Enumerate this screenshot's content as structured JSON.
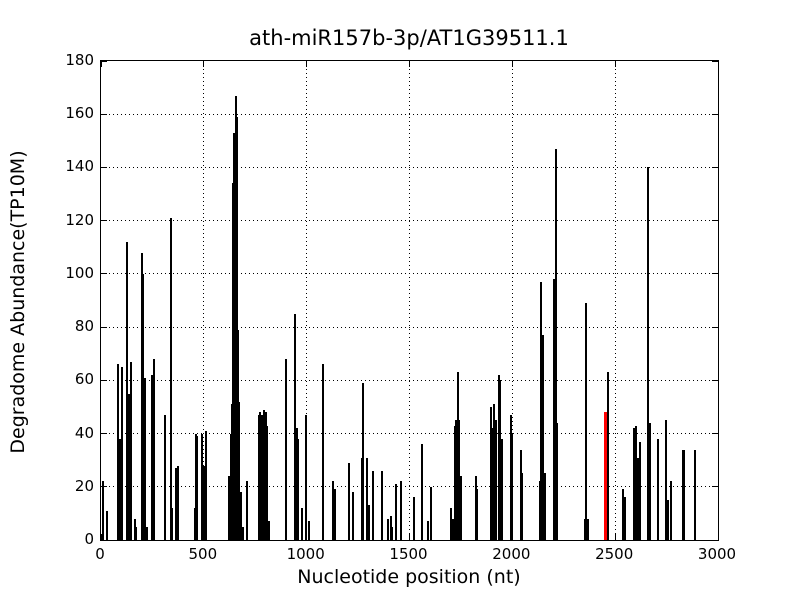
{
  "figure": {
    "title": "ath-miR157b-3p/AT1G39511.1",
    "xlabel": "Nucleotide position (nt)",
    "ylabel": "Degradome Abundance(TP10M)",
    "background_color": "#ffffff",
    "axis_color": "#000000"
  },
  "chart_data": {
    "type": "bar",
    "title": "ath-miR157b-3p/AT1G39511.1",
    "xlabel": "Nucleotide position (nt)",
    "ylabel": "Degradome Abundance(TP10M)",
    "xlim": [
      0,
      3000
    ],
    "ylim": [
      0,
      180
    ],
    "xticks": [
      0,
      500,
      1000,
      1500,
      2000,
      2500,
      3000
    ],
    "yticks": [
      0,
      20,
      40,
      60,
      80,
      100,
      120,
      140,
      160,
      180
    ],
    "grid": "dotted",
    "legend": "none",
    "series": [
      {
        "name": "degradome-fragments",
        "color": "#000000",
        "points": [
          [
            8,
            22
          ],
          [
            30,
            11
          ],
          [
            83,
            66
          ],
          [
            89,
            34
          ],
          [
            94,
            38
          ],
          [
            102,
            65
          ],
          [
            125,
            112
          ],
          [
            130,
            48
          ],
          [
            135,
            55
          ],
          [
            147,
            67
          ],
          [
            163,
            8
          ],
          [
            171,
            5
          ],
          [
            199,
            108
          ],
          [
            205,
            100
          ],
          [
            213,
            61
          ],
          [
            222,
            5
          ],
          [
            246,
            62
          ],
          [
            259,
            68
          ],
          [
            312,
            47
          ],
          [
            338,
            121
          ],
          [
            346,
            12
          ],
          [
            366,
            27
          ],
          [
            372,
            28
          ],
          [
            455,
            12
          ],
          [
            461,
            40
          ],
          [
            468,
            39
          ],
          [
            490,
            40
          ],
          [
            503,
            28
          ],
          [
            511,
            41
          ],
          [
            620,
            24
          ],
          [
            630,
            40
          ],
          [
            636,
            51
          ],
          [
            641,
            134
          ],
          [
            645,
            125
          ],
          [
            648,
            153
          ],
          [
            654,
            167
          ],
          [
            659,
            159
          ],
          [
            665,
            79
          ],
          [
            673,
            52
          ],
          [
            683,
            18
          ],
          [
            692,
            5
          ],
          [
            710,
            22
          ],
          [
            766,
            47
          ],
          [
            774,
            48
          ],
          [
            782,
            47
          ],
          [
            791,
            49
          ],
          [
            800,
            48
          ],
          [
            808,
            43
          ],
          [
            818,
            7
          ],
          [
            900,
            68
          ],
          [
            945,
            85
          ],
          [
            952,
            42
          ],
          [
            959,
            38
          ],
          [
            978,
            12
          ],
          [
            995,
            47
          ],
          [
            1010,
            7
          ],
          [
            1078,
            66
          ],
          [
            1130,
            22
          ],
          [
            1137,
            19
          ],
          [
            1205,
            29
          ],
          [
            1226,
            18
          ],
          [
            1268,
            31
          ],
          [
            1272,
            49
          ],
          [
            1275,
            59
          ],
          [
            1294,
            31
          ],
          [
            1302,
            13
          ],
          [
            1323,
            26
          ],
          [
            1365,
            26
          ],
          [
            1396,
            8
          ],
          [
            1408,
            9
          ],
          [
            1414,
            5
          ],
          [
            1432,
            21
          ],
          [
            1460,
            22
          ],
          [
            1522,
            16
          ],
          [
            1560,
            36
          ],
          [
            1592,
            7
          ],
          [
            1606,
            20
          ],
          [
            1700,
            12
          ],
          [
            1713,
            8
          ],
          [
            1720,
            43
          ],
          [
            1726,
            45
          ],
          [
            1734,
            63
          ],
          [
            1741,
            45
          ],
          [
            1749,
            24
          ],
          [
            1822,
            24
          ],
          [
            1830,
            19
          ],
          [
            1894,
            50
          ],
          [
            1903,
            42
          ],
          [
            1912,
            51
          ],
          [
            1920,
            45
          ],
          [
            1935,
            62
          ],
          [
            1942,
            60
          ],
          [
            1951,
            38
          ],
          [
            1992,
            47
          ],
          [
            1999,
            40
          ],
          [
            2041,
            34
          ],
          [
            2048,
            25
          ],
          [
            2135,
            22
          ],
          [
            2141,
            97
          ],
          [
            2148,
            77
          ],
          [
            2157,
            25
          ],
          [
            2205,
            98
          ],
          [
            2211,
            147
          ],
          [
            2219,
            44
          ],
          [
            2352,
            8
          ],
          [
            2358,
            89
          ],
          [
            2370,
            8
          ],
          [
            2449,
            42
          ],
          [
            2466,
            63
          ],
          [
            2538,
            19
          ],
          [
            2547,
            16
          ],
          [
            2594,
            42
          ],
          [
            2602,
            43
          ],
          [
            2612,
            31
          ],
          [
            2622,
            37
          ],
          [
            2661,
            140
          ],
          [
            2667,
            44
          ],
          [
            2710,
            38
          ],
          [
            2748,
            45
          ],
          [
            2757,
            15
          ],
          [
            2772,
            22
          ],
          [
            2828,
            34
          ],
          [
            2834,
            34
          ],
          [
            2890,
            34
          ]
        ]
      },
      {
        "name": "mirna-cleavage-site-highlight",
        "color": "#ff0000",
        "points": [
          [
            2455,
            48
          ]
        ]
      }
    ]
  }
}
